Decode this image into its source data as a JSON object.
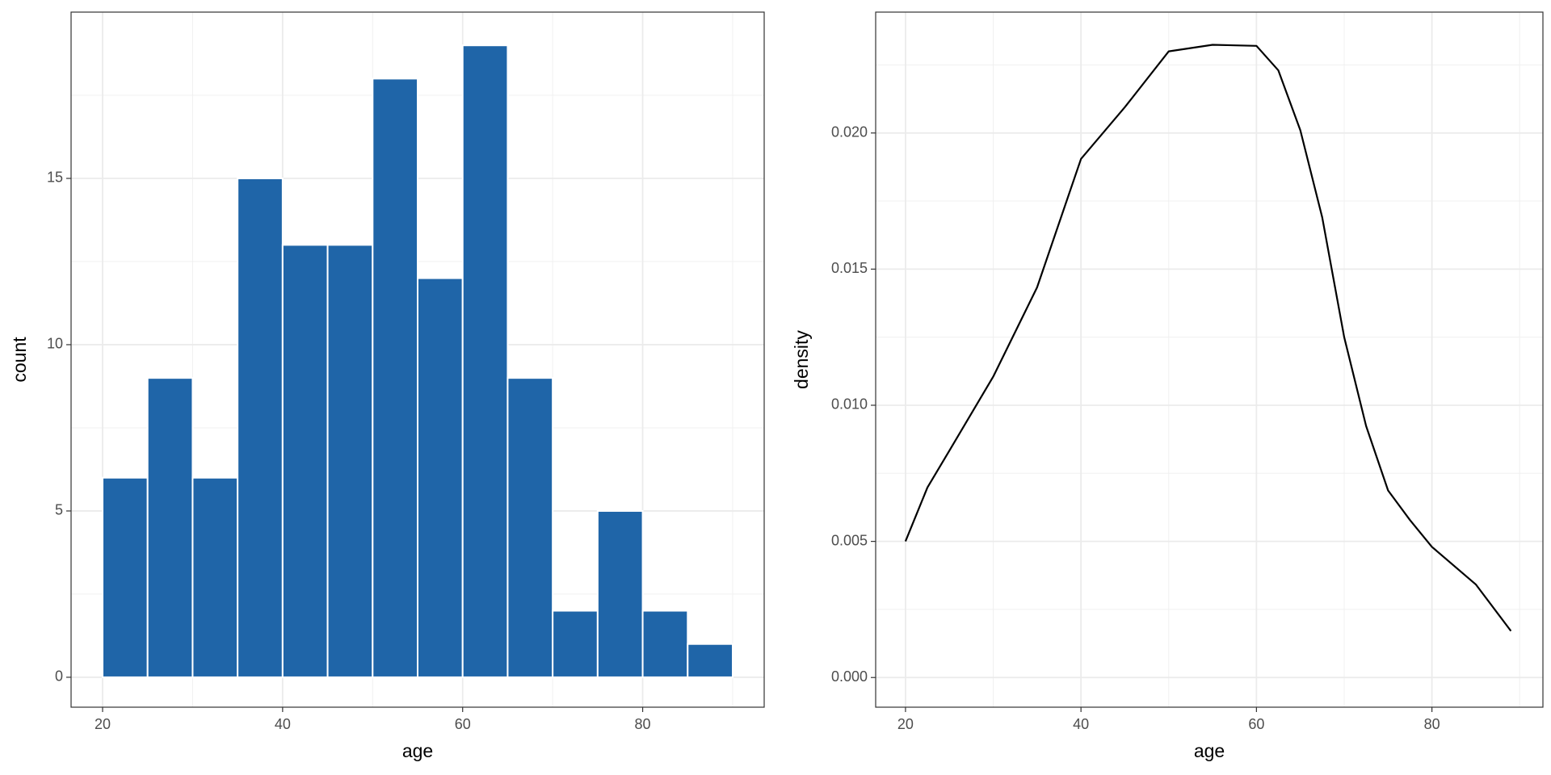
{
  "chart_data": [
    {
      "type": "histogram",
      "xlabel": "age",
      "ylabel": "count",
      "color": "#1f65a8",
      "bins": [
        20,
        25,
        30,
        35,
        40,
        45,
        50,
        55,
        60,
        65,
        70,
        75,
        80,
        85,
        90
      ],
      "values": [
        6,
        9,
        6,
        15,
        13,
        13,
        18,
        12,
        19,
        9,
        2,
        5,
        2,
        1
      ],
      "xlim": [
        16.5,
        93.5
      ],
      "ylim": [
        -0.9,
        20
      ],
      "xticks": [
        20,
        40,
        60,
        80
      ],
      "yticks": [
        0,
        5,
        10,
        15
      ],
      "grid": true
    },
    {
      "type": "line",
      "xlabel": "age",
      "ylabel": "density",
      "color": "#000000",
      "x": [
        20,
        22.5,
        25,
        30,
        35,
        40,
        45,
        50,
        55,
        60,
        62.5,
        65,
        67.5,
        70,
        72.5,
        75,
        77.5,
        80,
        85,
        89
      ],
      "values": [
        0.005,
        0.00698,
        0.00833,
        0.01105,
        0.01433,
        0.01905,
        0.02095,
        0.023,
        0.02324,
        0.0232,
        0.0223,
        0.0201,
        0.0169,
        0.0125,
        0.00924,
        0.00687,
        0.00578,
        0.0048,
        0.00342,
        0.00171
      ],
      "xlim": [
        16.6,
        92.65
      ],
      "ylim": [
        -0.00109,
        0.02444
      ],
      "xticks": [
        20,
        40,
        60,
        80
      ],
      "yticks": [
        {
          "value": 0,
          "label": "0.000"
        },
        0.005,
        {
          "value": 0.01,
          "label": "0.010"
        },
        0.015,
        {
          "value": 0.02,
          "label": "0.020"
        }
      ],
      "grid": true
    }
  ]
}
